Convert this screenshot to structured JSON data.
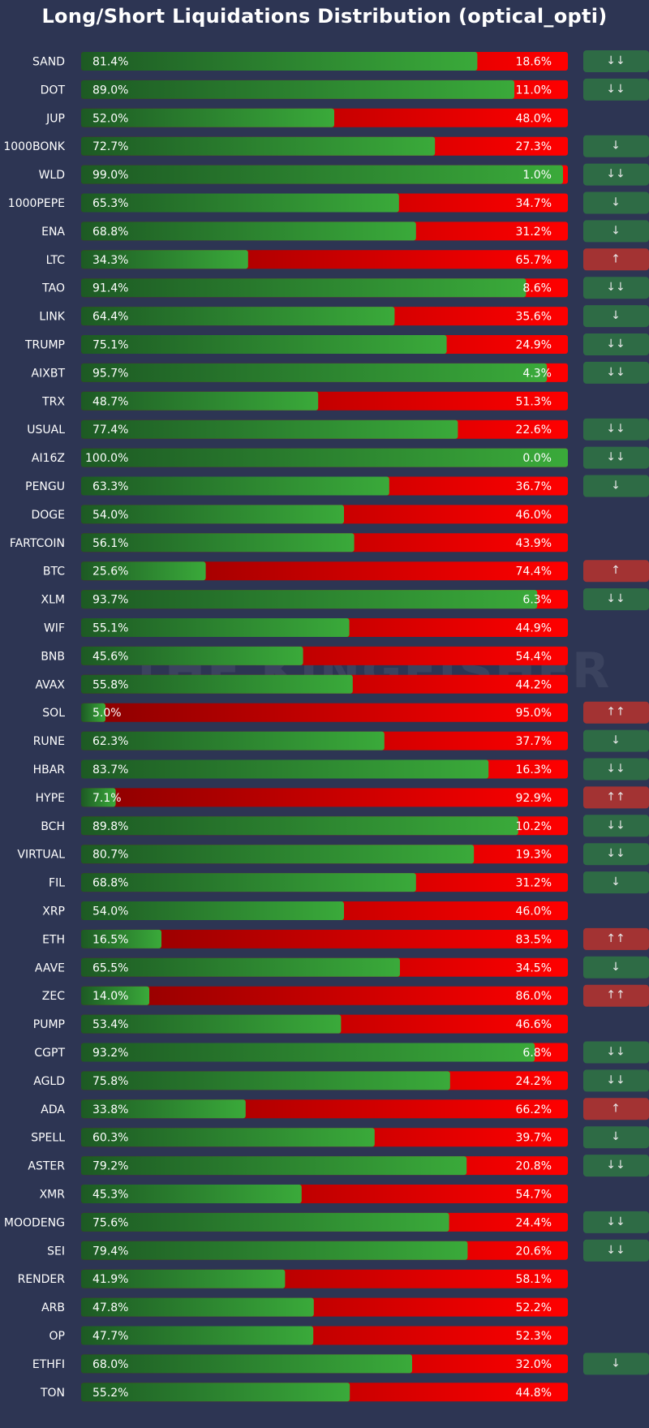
{
  "chart_data": {
    "type": "bar",
    "subtype": "stacked-horizontal-100",
    "title": "Long/Short Liquidations Distribution (optical_opti)",
    "watermark": "THE KINGFISHER",
    "colors": {
      "long": "#3aaa3a",
      "long_dark": "#1d5a24",
      "short": "#ff0000",
      "short_dark": "#8a0000",
      "signal_down": "#2e6b45",
      "signal_up": "#a33333"
    },
    "rows": [
      {
        "symbol": "SAND",
        "long": 81.4,
        "short": 18.6,
        "long_label": "81.4%",
        "short_label": "18.6%",
        "signal": "↓↓"
      },
      {
        "symbol": "DOT",
        "long": 89.0,
        "short": 11.0,
        "long_label": "89.0%",
        "short_label": "11.0%",
        "signal": "↓↓"
      },
      {
        "symbol": "JUP",
        "long": 52.0,
        "short": 48.0,
        "long_label": "52.0%",
        "short_label": "48.0%",
        "signal": ""
      },
      {
        "symbol": "1000BONK",
        "long": 72.7,
        "short": 27.3,
        "long_label": "72.7%",
        "short_label": "27.3%",
        "signal": "↓"
      },
      {
        "symbol": "WLD",
        "long": 99.0,
        "short": 1.0,
        "long_label": "99.0%",
        "short_label": "1.0%",
        "signal": "↓↓"
      },
      {
        "symbol": "1000PEPE",
        "long": 65.3,
        "short": 34.7,
        "long_label": "65.3%",
        "short_label": "34.7%",
        "signal": "↓"
      },
      {
        "symbol": "ENA",
        "long": 68.8,
        "short": 31.2,
        "long_label": "68.8%",
        "short_label": "31.2%",
        "signal": "↓"
      },
      {
        "symbol": "LTC",
        "long": 34.3,
        "short": 65.7,
        "long_label": "34.3%",
        "short_label": "65.7%",
        "signal": "↑"
      },
      {
        "symbol": "TAO",
        "long": 91.4,
        "short": 8.6,
        "long_label": "91.4%",
        "short_label": "8.6%",
        "signal": "↓↓"
      },
      {
        "symbol": "LINK",
        "long": 64.4,
        "short": 35.6,
        "long_label": "64.4%",
        "short_label": "35.6%",
        "signal": "↓"
      },
      {
        "symbol": "TRUMP",
        "long": 75.1,
        "short": 24.9,
        "long_label": "75.1%",
        "short_label": "24.9%",
        "signal": "↓↓"
      },
      {
        "symbol": "AIXBT",
        "long": 95.7,
        "short": 4.3,
        "long_label": "95.7%",
        "short_label": "4.3%",
        "signal": "↓↓"
      },
      {
        "symbol": "TRX",
        "long": 48.7,
        "short": 51.3,
        "long_label": "48.7%",
        "short_label": "51.3%",
        "signal": ""
      },
      {
        "symbol": "USUAL",
        "long": 77.4,
        "short": 22.6,
        "long_label": "77.4%",
        "short_label": "22.6%",
        "signal": "↓↓"
      },
      {
        "symbol": "AI16Z",
        "long": 100.0,
        "short": 0.0,
        "long_label": "100.0%",
        "short_label": "0.0%",
        "signal": "↓↓"
      },
      {
        "symbol": "PENGU",
        "long": 63.3,
        "short": 36.7,
        "long_label": "63.3%",
        "short_label": "36.7%",
        "signal": "↓"
      },
      {
        "symbol": "DOGE",
        "long": 54.0,
        "short": 46.0,
        "long_label": "54.0%",
        "short_label": "46.0%",
        "signal": ""
      },
      {
        "symbol": "FARTCOIN",
        "long": 56.1,
        "short": 43.9,
        "long_label": "56.1%",
        "short_label": "43.9%",
        "signal": ""
      },
      {
        "symbol": "BTC",
        "long": 25.6,
        "short": 74.4,
        "long_label": "25.6%",
        "short_label": "74.4%",
        "signal": "↑"
      },
      {
        "symbol": "XLM",
        "long": 93.7,
        "short": 6.3,
        "long_label": "93.7%",
        "short_label": "6.3%",
        "signal": "↓↓"
      },
      {
        "symbol": "WIF",
        "long": 55.1,
        "short": 44.9,
        "long_label": "55.1%",
        "short_label": "44.9%",
        "signal": ""
      },
      {
        "symbol": "BNB",
        "long": 45.6,
        "short": 54.4,
        "long_label": "45.6%",
        "short_label": "54.4%",
        "signal": ""
      },
      {
        "symbol": "AVAX",
        "long": 55.8,
        "short": 44.2,
        "long_label": "55.8%",
        "short_label": "44.2%",
        "signal": ""
      },
      {
        "symbol": "SOL",
        "long": 5.0,
        "short": 95.0,
        "long_label": "5.0%",
        "short_label": "95.0%",
        "signal": "↑↑"
      },
      {
        "symbol": "RUNE",
        "long": 62.3,
        "short": 37.7,
        "long_label": "62.3%",
        "short_label": "37.7%",
        "signal": "↓"
      },
      {
        "symbol": "HBAR",
        "long": 83.7,
        "short": 16.3,
        "long_label": "83.7%",
        "short_label": "16.3%",
        "signal": "↓↓"
      },
      {
        "symbol": "HYPE",
        "long": 7.1,
        "short": 92.9,
        "long_label": "7.1%",
        "short_label": "92.9%",
        "signal": "↑↑"
      },
      {
        "symbol": "BCH",
        "long": 89.8,
        "short": 10.2,
        "long_label": "89.8%",
        "short_label": "10.2%",
        "signal": "↓↓"
      },
      {
        "symbol": "VIRTUAL",
        "long": 80.7,
        "short": 19.3,
        "long_label": "80.7%",
        "short_label": "19.3%",
        "signal": "↓↓"
      },
      {
        "symbol": "FIL",
        "long": 68.8,
        "short": 31.2,
        "long_label": "68.8%",
        "short_label": "31.2%",
        "signal": "↓"
      },
      {
        "symbol": "XRP",
        "long": 54.0,
        "short": 46.0,
        "long_label": "54.0%",
        "short_label": "46.0%",
        "signal": ""
      },
      {
        "symbol": "ETH",
        "long": 16.5,
        "short": 83.5,
        "long_label": "16.5%",
        "short_label": "83.5%",
        "signal": "↑↑"
      },
      {
        "symbol": "AAVE",
        "long": 65.5,
        "short": 34.5,
        "long_label": "65.5%",
        "short_label": "34.5%",
        "signal": "↓"
      },
      {
        "symbol": "ZEC",
        "long": 14.0,
        "short": 86.0,
        "long_label": "14.0%",
        "short_label": "86.0%",
        "signal": "↑↑"
      },
      {
        "symbol": "PUMP",
        "long": 53.4,
        "short": 46.6,
        "long_label": "53.4%",
        "short_label": "46.6%",
        "signal": ""
      },
      {
        "symbol": "CGPT",
        "long": 93.2,
        "short": 6.8,
        "long_label": "93.2%",
        "short_label": "6.8%",
        "signal": "↓↓"
      },
      {
        "symbol": "AGLD",
        "long": 75.8,
        "short": 24.2,
        "long_label": "75.8%",
        "short_label": "24.2%",
        "signal": "↓↓"
      },
      {
        "symbol": "ADA",
        "long": 33.8,
        "short": 66.2,
        "long_label": "33.8%",
        "short_label": "66.2%",
        "signal": "↑"
      },
      {
        "symbol": "SPELL",
        "long": 60.3,
        "short": 39.7,
        "long_label": "60.3%",
        "short_label": "39.7%",
        "signal": "↓"
      },
      {
        "symbol": "ASTER",
        "long": 79.2,
        "short": 20.8,
        "long_label": "79.2%",
        "short_label": "20.8%",
        "signal": "↓↓"
      },
      {
        "symbol": "XMR",
        "long": 45.3,
        "short": 54.7,
        "long_label": "45.3%",
        "short_label": "54.7%",
        "signal": ""
      },
      {
        "symbol": "MOODENG",
        "long": 75.6,
        "short": 24.4,
        "long_label": "75.6%",
        "short_label": "24.4%",
        "signal": "↓↓"
      },
      {
        "symbol": "SEI",
        "long": 79.4,
        "short": 20.6,
        "long_label": "79.4%",
        "short_label": "20.6%",
        "signal": "↓↓"
      },
      {
        "symbol": "RENDER",
        "long": 41.9,
        "short": 58.1,
        "long_label": "41.9%",
        "short_label": "58.1%",
        "signal": ""
      },
      {
        "symbol": "ARB",
        "long": 47.8,
        "short": 52.2,
        "long_label": "47.8%",
        "short_label": "52.2%",
        "signal": ""
      },
      {
        "symbol": "OP",
        "long": 47.7,
        "short": 52.3,
        "long_label": "47.7%",
        "short_label": "52.3%",
        "signal": ""
      },
      {
        "symbol": "ETHFI",
        "long": 68.0,
        "short": 32.0,
        "long_label": "68.0%",
        "short_label": "32.0%",
        "signal": "↓"
      },
      {
        "symbol": "TON",
        "long": 55.2,
        "short": 44.8,
        "long_label": "55.2%",
        "short_label": "44.8%",
        "signal": ""
      }
    ]
  }
}
